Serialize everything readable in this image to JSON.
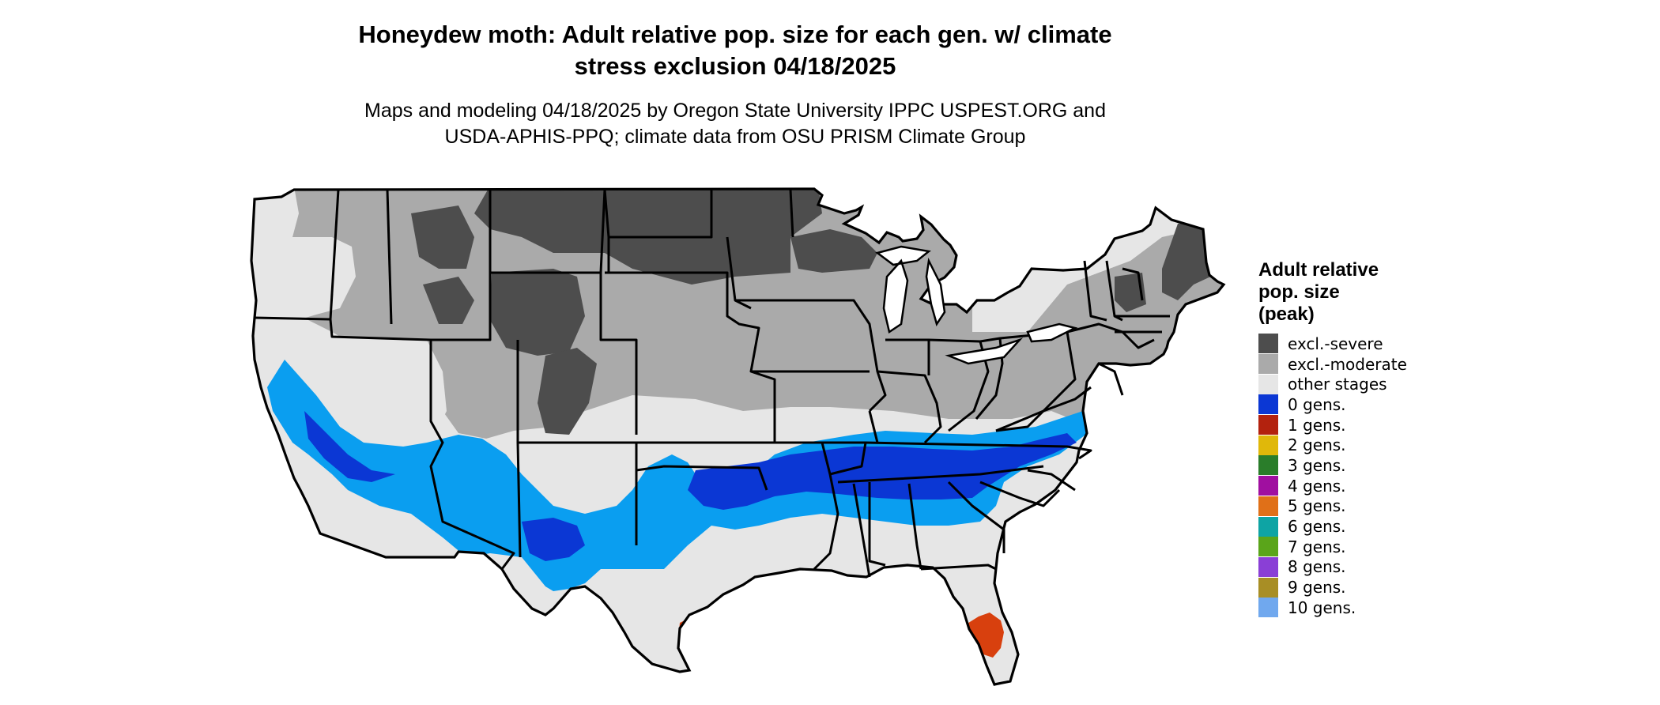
{
  "title": {
    "line1": "Honeydew moth: Adult relative pop. size for each gen. w/ climate",
    "line2": "stress exclusion 04/18/2025"
  },
  "subtitle": {
    "line1": "Maps and modeling 04/18/2025 by Oregon State University IPPC USPEST.ORG and",
    "line2": "USDA-APHIS-PPQ; climate data from OSU PRISM Climate Group"
  },
  "legend": {
    "title_lines": [
      "Adult relative",
      "pop. size",
      "(peak)"
    ],
    "items": [
      {
        "label": "excl.-severe",
        "color": "#4d4d4d"
      },
      {
        "label": "excl.-moderate",
        "color": "#aaaaaa"
      },
      {
        "label": "other stages",
        "color": "#e6e6e6"
      },
      {
        "label": "0 gens.",
        "color": "#0b37d4"
      },
      {
        "label": "1 gens.",
        "color": "#b3220e"
      },
      {
        "label": "2 gens.",
        "color": "#e0b80a"
      },
      {
        "label": "3 gens.",
        "color": "#2a7d2a"
      },
      {
        "label": "4 gens.",
        "color": "#a00fa0"
      },
      {
        "label": "5 gens.",
        "color": "#e07018"
      },
      {
        "label": "6 gens.",
        "color": "#0ea4a4"
      },
      {
        "label": "7 gens.",
        "color": "#5aa51a"
      },
      {
        "label": "8 gens.",
        "color": "#8a3fd6"
      },
      {
        "label": "9 gens.",
        "color": "#a88e25"
      },
      {
        "label": "10 gens.",
        "color": "#70a8ee"
      }
    ]
  },
  "map_colors": {
    "background": "#e6e6e6",
    "moderate": "#aaaaaa",
    "severe": "#4d4d4d",
    "cyan_band": "#0a9ef0",
    "blue_band": "#0b37d4",
    "gen1": "#d8400e",
    "borders": "#000000"
  }
}
